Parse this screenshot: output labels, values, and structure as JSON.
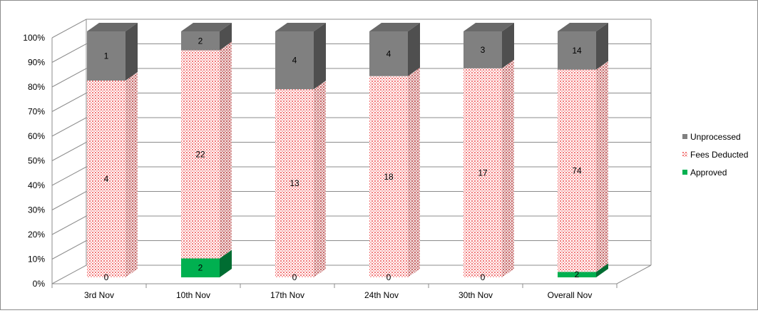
{
  "chart_data": {
    "type": "bar",
    "stacked": "percent",
    "categories": [
      "3rd Nov",
      "10th Nov",
      "17th Nov",
      "24th Nov",
      "30th Nov",
      "Overall Nov"
    ],
    "series": [
      {
        "name": "Approved",
        "values": [
          0,
          2,
          0,
          0,
          0,
          2
        ],
        "color": "#00b050"
      },
      {
        "name": "Fees Deducted",
        "values": [
          4,
          22,
          13,
          18,
          17,
          74
        ],
        "color": "#ff9999",
        "pattern": "dotted"
      },
      {
        "name": "Unprocessed",
        "values": [
          1,
          2,
          4,
          4,
          3,
          14
        ],
        "color": "#808080"
      }
    ],
    "y_ticks": [
      "0%",
      "10%",
      "20%",
      "30%",
      "40%",
      "50%",
      "60%",
      "70%",
      "80%",
      "90%",
      "100%"
    ],
    "ylim": [
      0,
      100
    ],
    "grid": true,
    "legend_position": "right",
    "three_d": true
  }
}
